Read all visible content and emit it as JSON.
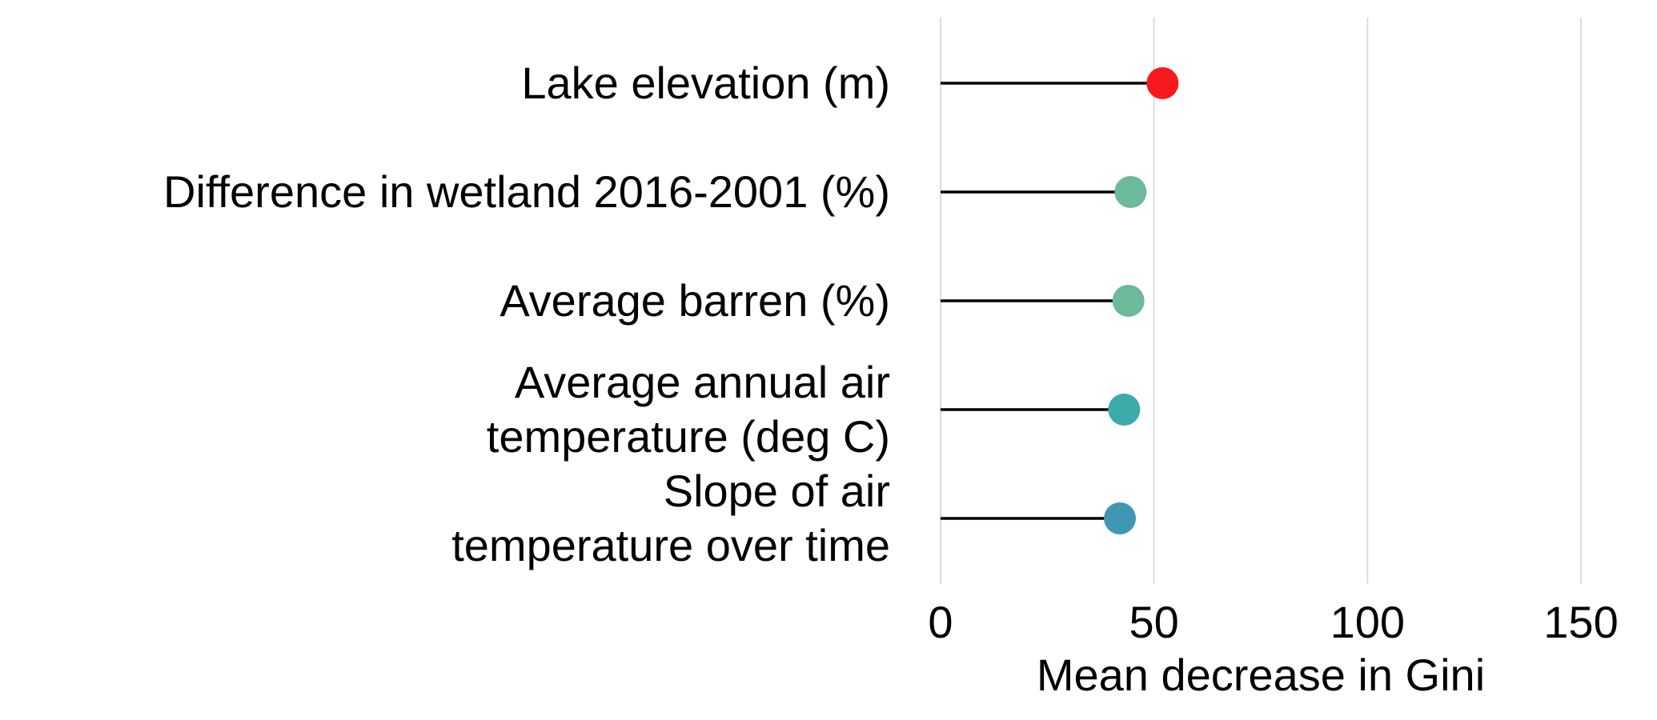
{
  "chart_data": {
    "type": "lollipop",
    "categories": [
      [
        "Lake elevation (m)"
      ],
      [
        "Difference in wetland 2016-2001 (%)"
      ],
      [
        "Average barren (%)"
      ],
      [
        "Average annual air",
        "temperature (deg C)"
      ],
      [
        "Slope of air",
        "temperature over time"
      ]
    ],
    "values": [
      52,
      44.5,
      44,
      43,
      42
    ],
    "colors": [
      "#f8191e",
      "#6cb99b",
      "#6cb99b",
      "#3aaba8",
      "#3f97b4"
    ],
    "xlabel": "Mean decrease in Gini",
    "xlim": [
      0,
      150
    ],
    "xticks": [
      0,
      50,
      100,
      150
    ],
    "grid": "vertical",
    "legend": "none"
  }
}
